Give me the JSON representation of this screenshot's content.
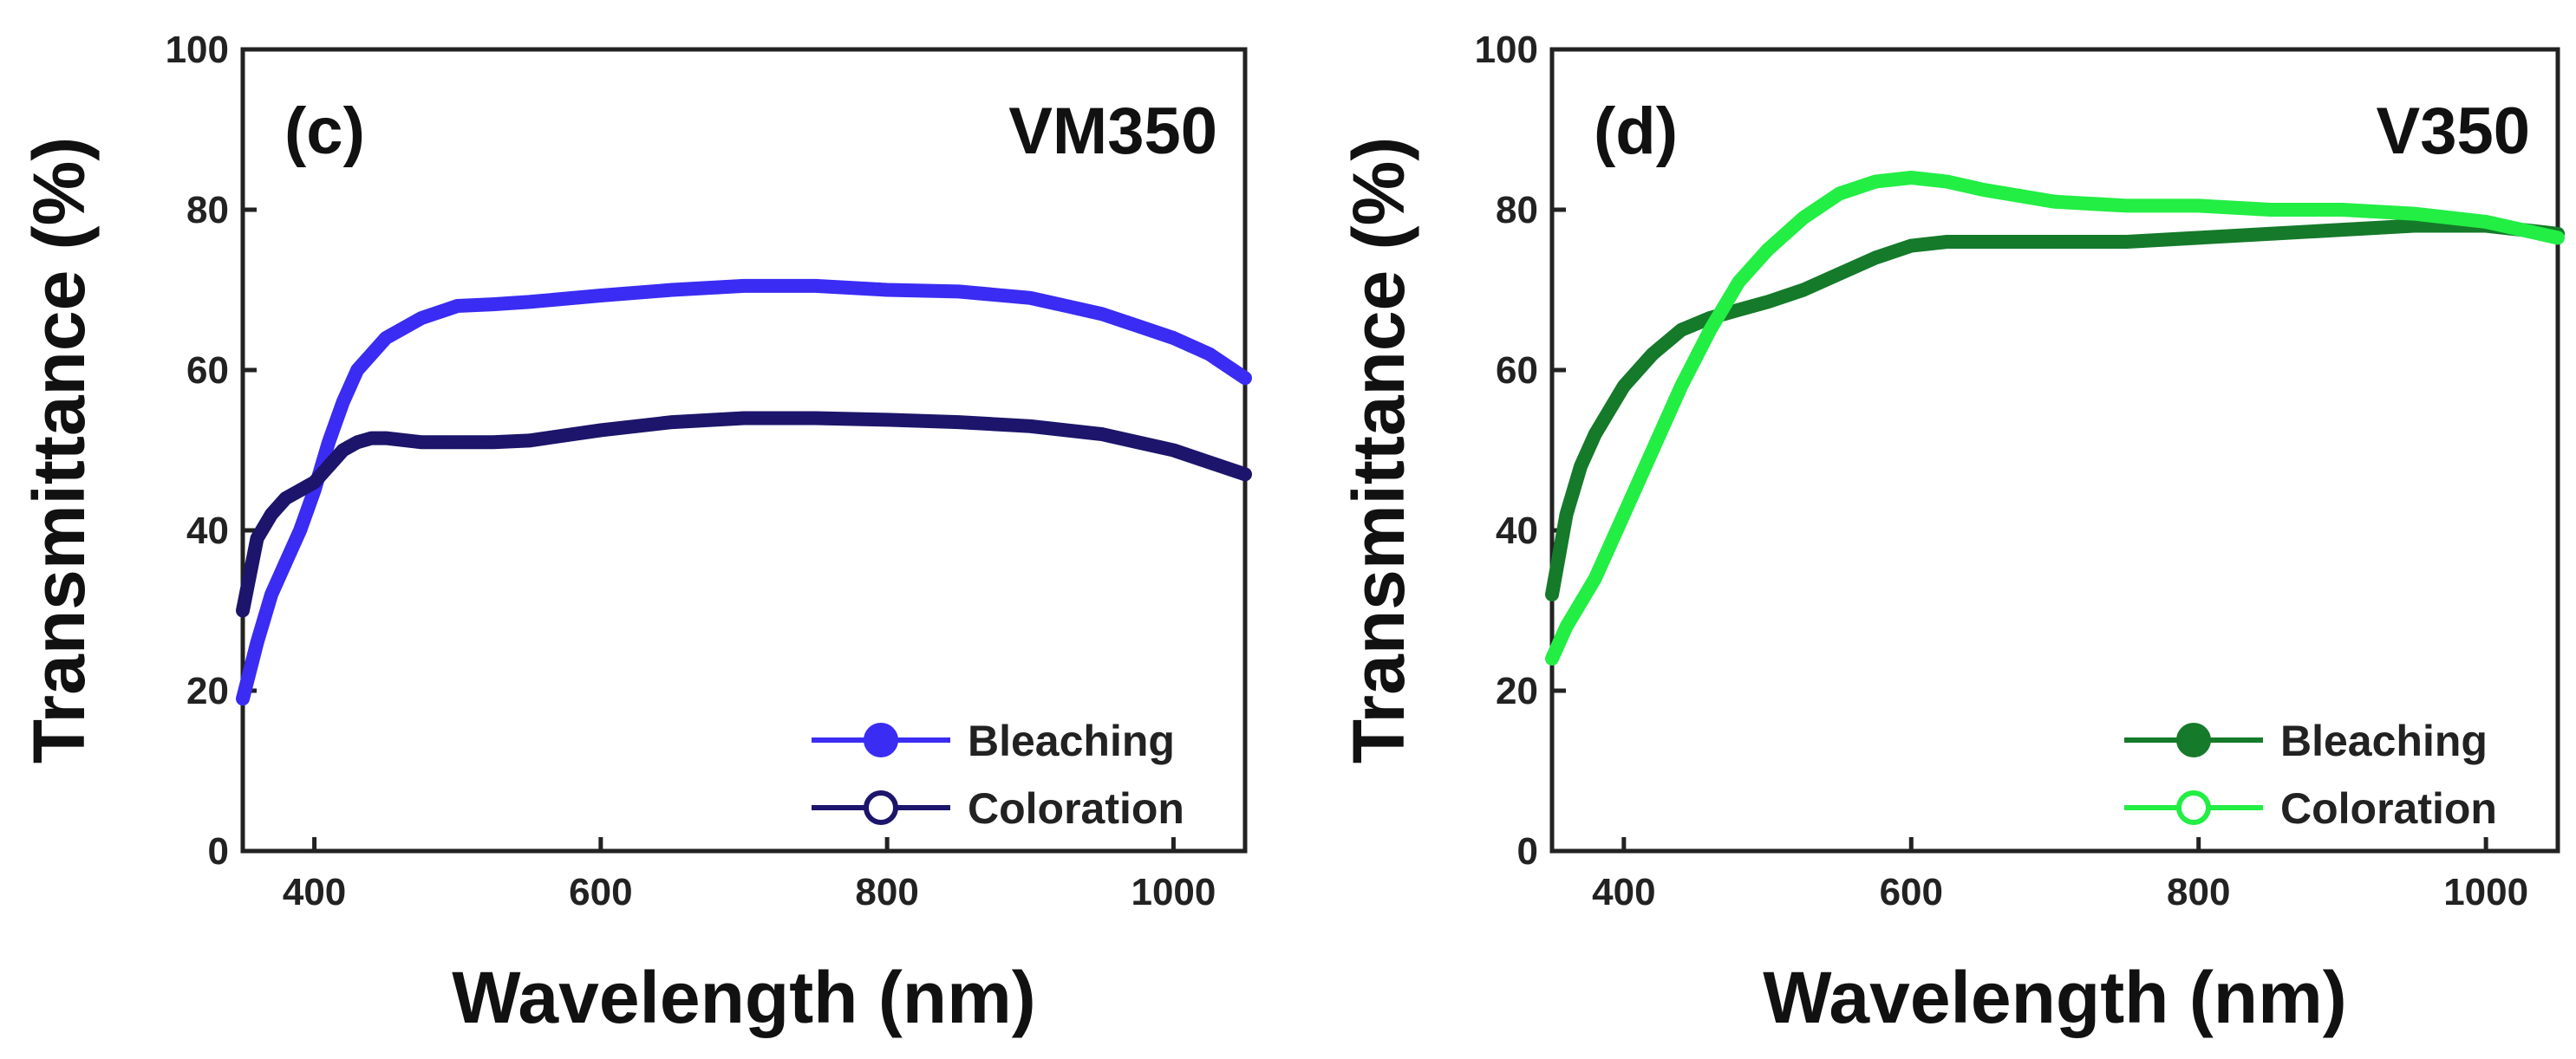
{
  "chart_data": [
    {
      "type": "line",
      "panel_label": "(c)",
      "sample": "VM350",
      "xlabel": "Wavelength (nm)",
      "ylabel": "Transmittance (%)",
      "xlim": [
        350,
        1050
      ],
      "ylim": [
        0,
        100
      ],
      "xticks": [
        400,
        600,
        800,
        1000
      ],
      "yticks": [
        0,
        20,
        40,
        60,
        80,
        100
      ],
      "legend_position": "bottom-right",
      "x": [
        350,
        360,
        370,
        380,
        390,
        400,
        410,
        420,
        430,
        440,
        450,
        475,
        500,
        525,
        550,
        600,
        650,
        700,
        750,
        800,
        850,
        900,
        925,
        950,
        975,
        1000,
        1025,
        1050
      ],
      "series": [
        {
          "name": "Bleaching",
          "color": "#3a2cf2",
          "marker": "filled-circle",
          "values": [
            19,
            26,
            32,
            36,
            40,
            45,
            51,
            56,
            60,
            62,
            64,
            66.5,
            68,
            68.2,
            68.5,
            69.3,
            70,
            70.5,
            70.5,
            70,
            69.8,
            69,
            68,
            67,
            65.5,
            64,
            62,
            59
          ]
        },
        {
          "name": "Coloration",
          "color": "#1c156b",
          "marker": "open-circle",
          "values": [
            30,
            39,
            42,
            44,
            45,
            46,
            48,
            50,
            51,
            51.5,
            51.5,
            51,
            51,
            51,
            51.2,
            52.5,
            53.5,
            54,
            54,
            53.8,
            53.5,
            53,
            52.5,
            52,
            51,
            50,
            48.5,
            47
          ]
        }
      ]
    },
    {
      "type": "line",
      "panel_label": "(d)",
      "sample": "V350",
      "xlabel": "Wavelength (nm)",
      "ylabel": "Transmittance (%)",
      "xlim": [
        350,
        1050
      ],
      "ylim": [
        0,
        100
      ],
      "xticks": [
        400,
        600,
        800,
        1000
      ],
      "yticks": [
        0,
        20,
        40,
        60,
        80,
        100
      ],
      "legend_position": "bottom-right",
      "x": [
        350,
        360,
        370,
        380,
        390,
        400,
        420,
        440,
        460,
        480,
        500,
        525,
        550,
        575,
        600,
        625,
        650,
        700,
        750,
        800,
        850,
        900,
        950,
        1000,
        1050
      ],
      "series": [
        {
          "name": "Bleaching",
          "color": "#157a2a",
          "marker": "filled-circle",
          "values": [
            32,
            42,
            48,
            52,
            55,
            58,
            62,
            65,
            66.5,
            67.5,
            68.5,
            70,
            72,
            74,
            75.5,
            76,
            76,
            76,
            76,
            76.5,
            77,
            77.5,
            78,
            78,
            77
          ]
        },
        {
          "name": "Coloration",
          "color": "#22ee44",
          "marker": "open-circle",
          "values": [
            24,
            28,
            31,
            34,
            38,
            42,
            50,
            58,
            65,
            71,
            75,
            79,
            82,
            83.5,
            84,
            83.5,
            82.5,
            81,
            80.5,
            80.5,
            80,
            80,
            79.5,
            78.5,
            76.5
          ]
        }
      ]
    }
  ]
}
